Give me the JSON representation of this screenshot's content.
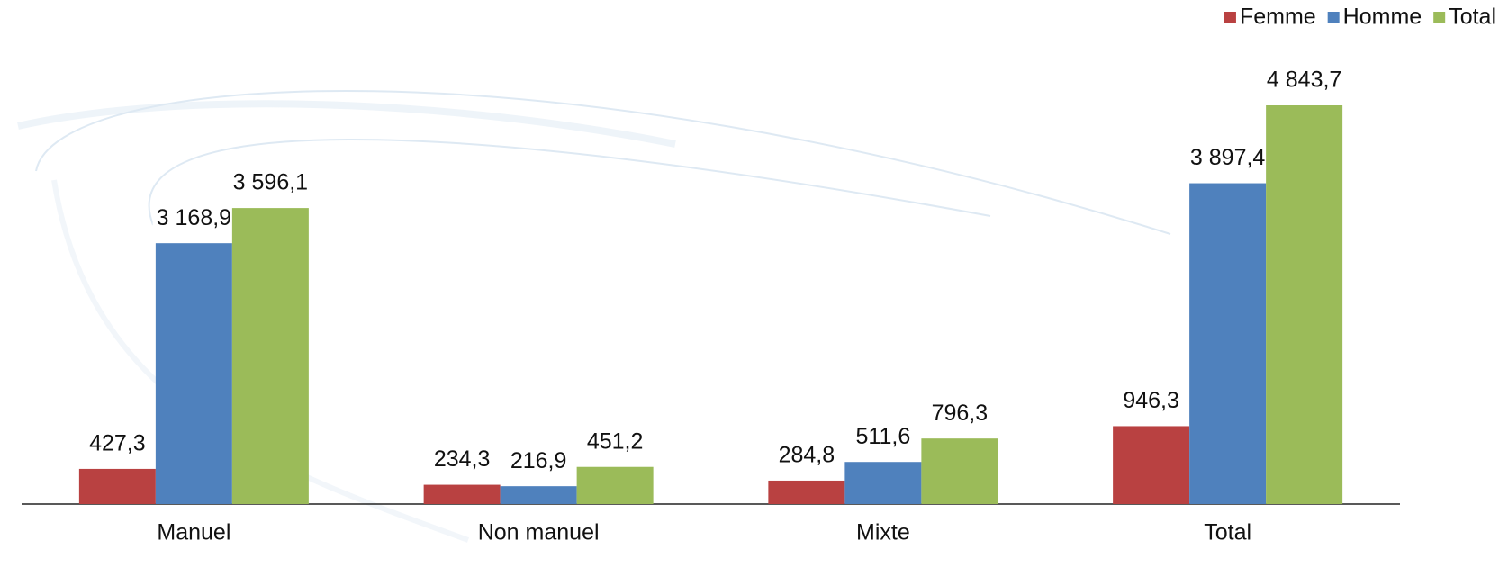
{
  "chart_data": {
    "type": "bar",
    "categories": [
      "Manuel",
      "Non manuel",
      "Mixte",
      "Total"
    ],
    "series": [
      {
        "name": "Femme",
        "color": "#b94141",
        "values": [
          427.3,
          234.3,
          284.8,
          946.3
        ],
        "value_labels": [
          "427,3",
          "234,3",
          "284,8",
          "946,3"
        ]
      },
      {
        "name": "Homme",
        "color": "#4f81bd",
        "values": [
          3168.9,
          216.9,
          511.6,
          3897.4
        ],
        "value_labels": [
          "3 168,9",
          "216,9",
          "511,6",
          "3 897,4"
        ]
      },
      {
        "name": "Total",
        "color": "#9bbb59",
        "values": [
          3596.1,
          451.2,
          796.3,
          4843.7
        ],
        "value_labels": [
          "3 596,1",
          "451,2",
          "796,3",
          "4 843,7"
        ]
      }
    ],
    "legend": "top-right"
  }
}
